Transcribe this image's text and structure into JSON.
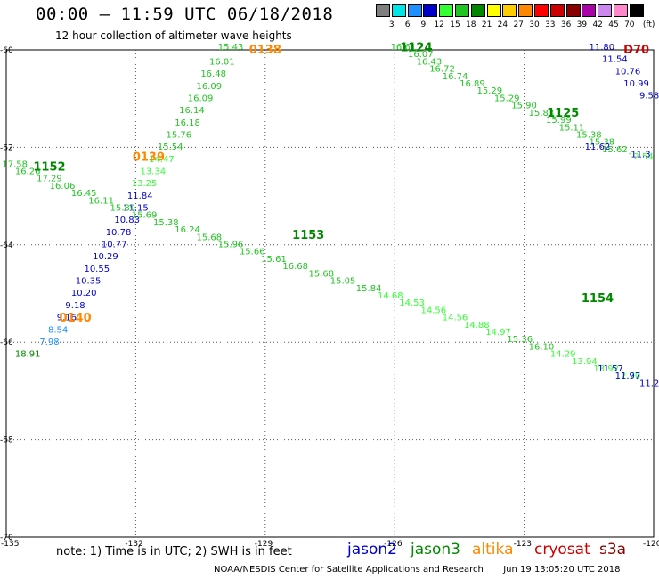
{
  "title": "00:00 – 11:59 UTC 06/18/2018",
  "subtitle": "12 hour collection of altimeter wave heights",
  "legend": {
    "unit": "(ft)",
    "bins": [
      {
        "label": "3",
        "color": "#7f7f7f"
      },
      {
        "label": "6",
        "color": "#00e5e5"
      },
      {
        "label": "9",
        "color": "#1e90ff"
      },
      {
        "label": "12",
        "color": "#0000cc"
      },
      {
        "label": "15",
        "color": "#33ff33"
      },
      {
        "label": "18",
        "color": "#22c422"
      },
      {
        "label": "21",
        "color": "#008800"
      },
      {
        "label": "24",
        "color": "#ffff00"
      },
      {
        "label": "27",
        "color": "#ffcc00"
      },
      {
        "label": "30",
        "color": "#ff8800"
      },
      {
        "label": "33",
        "color": "#ff0000"
      },
      {
        "label": "36",
        "color": "#cc0000"
      },
      {
        "label": "39",
        "color": "#880000"
      },
      {
        "label": "42",
        "color": "#aa00aa"
      },
      {
        "label": "45",
        "color": "#cc88ee"
      },
      {
        "label": "70",
        "color": "#ff88cc"
      },
      {
        "label": "",
        "color": "#000000"
      }
    ]
  },
  "axes": {
    "lon_ticks": [
      "-135",
      "-132",
      "-129",
      "-126",
      "-123",
      "-120"
    ],
    "lat_ticks": [
      "-60",
      "-62",
      "-64",
      "-66",
      "-68",
      "-70"
    ]
  },
  "chart_data": {
    "type": "scatter",
    "lon_range": [
      -135,
      -120
    ],
    "lat_range": [
      -70,
      -60
    ],
    "time_labels": [
      {
        "text": "0138",
        "sat": "altika",
        "lon": -129.0,
        "lat": -60.0
      },
      {
        "text": "0139",
        "sat": "altika",
        "lon": -131.7,
        "lat": -62.2
      },
      {
        "text": "0140",
        "sat": "altika",
        "lon": -133.4,
        "lat": -65.5
      },
      {
        "text": "1124",
        "sat": "jason3",
        "lon": -125.5,
        "lat": -59.95
      },
      {
        "text": "1125",
        "sat": "jason3",
        "lon": -122.1,
        "lat": -61.3
      },
      {
        "text": "1152",
        "sat": "jason3",
        "lon": -134.0,
        "lat": -62.4
      },
      {
        "text": "1153",
        "sat": "jason3",
        "lon": -128.0,
        "lat": -63.8
      },
      {
        "text": "1154",
        "sat": "jason3",
        "lon": -121.3,
        "lat": -65.1
      },
      {
        "text": "D70",
        "sat": "cryosat",
        "lon": -120.4,
        "lat": -60.0
      }
    ],
    "tracks": [
      {
        "sat": "altika",
        "points": [
          {
            "lon": -129.8,
            "lat": -60.0,
            "swh": "15.43"
          },
          {
            "lon": -130.0,
            "lat": -60.3,
            "swh": "16.01"
          },
          {
            "lon": -130.2,
            "lat": -60.55,
            "swh": "16.48"
          },
          {
            "lon": -130.3,
            "lat": -60.8,
            "swh": "16.09"
          },
          {
            "lon": -130.5,
            "lat": -61.05,
            "swh": "16.09"
          },
          {
            "lon": -130.7,
            "lat": -61.3,
            "swh": "16.14"
          },
          {
            "lon": -130.8,
            "lat": -61.55,
            "swh": "16.18"
          },
          {
            "lon": -131.0,
            "lat": -61.8,
            "swh": "15.76"
          },
          {
            "lon": -131.2,
            "lat": -62.05,
            "swh": "15.54"
          },
          {
            "lon": -131.4,
            "lat": -62.3,
            "swh": "14.47"
          },
          {
            "lon": -131.6,
            "lat": -62.55,
            "swh": "13.34"
          },
          {
            "lon": -131.8,
            "lat": -62.8,
            "swh": "13.25"
          },
          {
            "lon": -131.9,
            "lat": -63.05,
            "swh": "11.84"
          },
          {
            "lon": -132.0,
            "lat": -63.3,
            "swh": "11.15"
          },
          {
            "lon": -132.2,
            "lat": -63.55,
            "swh": "10.83"
          },
          {
            "lon": -132.4,
            "lat": -63.8,
            "swh": "10.78"
          },
          {
            "lon": -132.5,
            "lat": -64.05,
            "swh": "10.77"
          },
          {
            "lon": -132.7,
            "lat": -64.3,
            "swh": "10.29"
          },
          {
            "lon": -132.9,
            "lat": -64.55,
            "swh": "10.55"
          },
          {
            "lon": -133.1,
            "lat": -64.8,
            "swh": "10.35"
          },
          {
            "lon": -133.2,
            "lat": -65.05,
            "swh": "10.20"
          },
          {
            "lon": -133.4,
            "lat": -65.3,
            "swh": "9.18"
          },
          {
            "lon": -133.6,
            "lat": -65.55,
            "swh": "9.16"
          },
          {
            "lon": -133.8,
            "lat": -65.8,
            "swh": "8.54"
          },
          {
            "lon": -134.0,
            "lat": -66.05,
            "swh": "7.98"
          },
          {
            "lon": -134.5,
            "lat": -66.3,
            "swh": "18.91"
          }
        ]
      },
      {
        "sat": "jason3",
        "points": [
          {
            "lon": -125.8,
            "lat": -60.0,
            "swh": "16.61"
          },
          {
            "lon": -125.4,
            "lat": -60.15,
            "swh": "16.07"
          },
          {
            "lon": -125.2,
            "lat": -60.3,
            "swh": "16.43"
          },
          {
            "lon": -124.9,
            "lat": -60.45,
            "swh": "16.72"
          },
          {
            "lon": -124.6,
            "lat": -60.6,
            "swh": "16.74"
          },
          {
            "lon": -124.2,
            "lat": -60.75,
            "swh": "16.89"
          },
          {
            "lon": -123.8,
            "lat": -60.9,
            "swh": "15.29"
          },
          {
            "lon": -123.4,
            "lat": -61.05,
            "swh": "15.29"
          },
          {
            "lon": -123.0,
            "lat": -61.2,
            "swh": "15.90"
          },
          {
            "lon": -122.6,
            "lat": -61.35,
            "swh": "15.83"
          },
          {
            "lon": -122.2,
            "lat": -61.5,
            "swh": "15.99"
          },
          {
            "lon": -121.9,
            "lat": -61.65,
            "swh": "15.11"
          },
          {
            "lon": -121.5,
            "lat": -61.8,
            "swh": "15.38"
          },
          {
            "lon": -121.2,
            "lat": -61.95,
            "swh": "15.38"
          },
          {
            "lon": -120.9,
            "lat": -62.1,
            "swh": "15.62"
          },
          {
            "lon": -120.3,
            "lat": -62.25,
            "swh": "12.54"
          }
        ]
      },
      {
        "sat": "jason3",
        "points": [
          {
            "lon": -134.8,
            "lat": -62.4,
            "swh": "17.58"
          },
          {
            "lon": -134.5,
            "lat": -62.55,
            "swh": "16.26"
          },
          {
            "lon": -134.0,
            "lat": -62.7,
            "swh": "17.29"
          },
          {
            "lon": -133.7,
            "lat": -62.85,
            "swh": "16.06"
          },
          {
            "lon": -133.2,
            "lat": -63.0,
            "swh": "16.45"
          },
          {
            "lon": -132.8,
            "lat": -63.15,
            "swh": "16.11"
          },
          {
            "lon": -132.3,
            "lat": -63.3,
            "swh": "15.89"
          },
          {
            "lon": -131.8,
            "lat": -63.45,
            "swh": "15.69"
          },
          {
            "lon": -131.3,
            "lat": -63.6,
            "swh": "15.38"
          },
          {
            "lon": -130.8,
            "lat": -63.75,
            "swh": "16.24"
          },
          {
            "lon": -130.3,
            "lat": -63.9,
            "swh": "15.68"
          },
          {
            "lon": -129.8,
            "lat": -64.05,
            "swh": "15.96"
          },
          {
            "lon": -129.3,
            "lat": -64.2,
            "swh": "15.66"
          },
          {
            "lon": -128.8,
            "lat": -64.35,
            "swh": "15.61"
          },
          {
            "lon": -128.3,
            "lat": -64.5,
            "swh": "16.68"
          },
          {
            "lon": -127.7,
            "lat": -64.65,
            "swh": "15.68"
          },
          {
            "lon": -127.2,
            "lat": -64.8,
            "swh": "15.05"
          },
          {
            "lon": -126.6,
            "lat": -64.95,
            "swh": "15.84"
          },
          {
            "lon": -126.1,
            "lat": -65.1,
            "swh": "14.68"
          },
          {
            "lon": -125.6,
            "lat": -65.25,
            "swh": "14.53"
          },
          {
            "lon": -125.1,
            "lat": -65.4,
            "swh": "14.56"
          },
          {
            "lon": -124.6,
            "lat": -65.55,
            "swh": "14.56"
          },
          {
            "lon": -124.1,
            "lat": -65.7,
            "swh": "14.88"
          },
          {
            "lon": -123.6,
            "lat": -65.85,
            "swh": "14.97"
          },
          {
            "lon": -123.1,
            "lat": -66.0,
            "swh": "15.36"
          },
          {
            "lon": -122.6,
            "lat": -66.15,
            "swh": "16.10"
          },
          {
            "lon": -122.1,
            "lat": -66.3,
            "swh": "14.29"
          },
          {
            "lon": -121.6,
            "lat": -66.45,
            "swh": "13.94"
          },
          {
            "lon": -121.1,
            "lat": -66.6,
            "swh": "13.92"
          },
          {
            "lon": -120.6,
            "lat": -66.75,
            "swh": "12.70"
          }
        ]
      },
      {
        "sat": "jason2",
        "points": [
          {
            "lon": -121.2,
            "lat": -60.0,
            "swh": "11.80"
          },
          {
            "lon": -120.9,
            "lat": -60.25,
            "swh": "11.54"
          },
          {
            "lon": -120.6,
            "lat": -60.5,
            "swh": "10.76"
          },
          {
            "lon": -120.4,
            "lat": -60.75,
            "swh": "10.99"
          },
          {
            "lon": -120.1,
            "lat": -61.0,
            "swh": "9.58"
          },
          {
            "lon": -121.3,
            "lat": -62.05,
            "swh": "11.62"
          },
          {
            "lon": -120.3,
            "lat": -62.2,
            "swh": "11.3"
          },
          {
            "lon": -121.0,
            "lat": -66.6,
            "swh": "11.57"
          },
          {
            "lon": -120.6,
            "lat": -66.75,
            "swh": "11.97"
          },
          {
            "lon": -120.1,
            "lat": -66.9,
            "swh": "11.2"
          }
        ]
      }
    ]
  },
  "note": "note: 1) Time is in UTC; 2) SWH is in feet",
  "satellites": [
    {
      "name": "jason2",
      "color": "#0000cc"
    },
    {
      "name": "jason3",
      "color": "#008800"
    },
    {
      "name": "altika",
      "color": "#ff8800"
    },
    {
      "name": "cryosat",
      "color": "#cc0000"
    },
    {
      "name": "s3a",
      "color": "#880000"
    }
  ],
  "credit": "NOAA/NESDIS Center for Satellite Applications and Research",
  "timestamp": "Jun 19 13:05:20 UTC 2018"
}
